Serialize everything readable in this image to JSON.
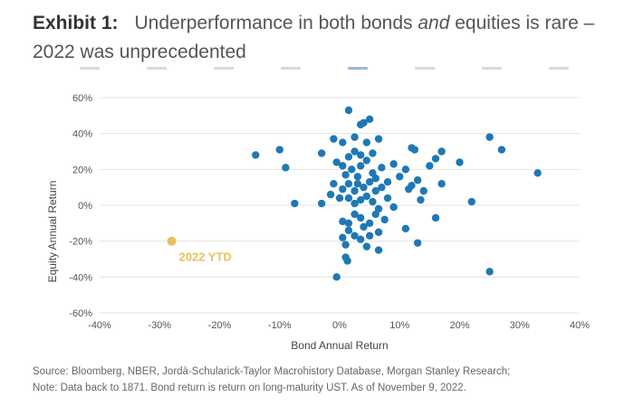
{
  "header": {
    "exhibit_label": "Exhibit 1:",
    "title_part1": "Underperformance in both bonds ",
    "title_emphasis": "and",
    "title_part2": " equities is rare – 2022 was unprecedented"
  },
  "footnote": {
    "line1": "Source: Bloomberg, NBER, Jordà-Schularick-Taylor Macrohistory Database, Morgan Stanley Research;",
    "line2": "Note: Data back to 1871. Bond return is return on long-maturity UST. As of November 9, 2022."
  },
  "colors": {
    "points": "#1f78b4",
    "highlight": "#e8c15c",
    "gridline": "#e3e3e3",
    "axis_text": "#555555"
  },
  "chart_data": {
    "type": "scatter",
    "xlabel": "Bond Annual Return",
    "ylabel": "Equity Annual Return",
    "xlim": [
      -40,
      40
    ],
    "ylim": [
      -60,
      60
    ],
    "x_ticks": [
      -40,
      -30,
      -20,
      -10,
      0,
      10,
      20,
      30,
      40
    ],
    "x_tick_labels": [
      "-40%",
      "-30%",
      "-20%",
      "-10%",
      "0%",
      "10%",
      "20%",
      "30%",
      "40%"
    ],
    "y_ticks": [
      -60,
      -40,
      -20,
      0,
      20,
      40,
      60
    ],
    "y_tick_labels": [
      "-60%",
      "-40%",
      "-20%",
      "0%",
      "20%",
      "40%",
      "60%"
    ],
    "grid": "horizontal",
    "series": [
      {
        "points": [
          [
            1.5,
            53
          ],
          [
            3.5,
            45
          ],
          [
            4,
            46
          ],
          [
            5,
            48
          ],
          [
            -1,
            37
          ],
          [
            0.5,
            35
          ],
          [
            2.5,
            38
          ],
          [
            4.5,
            35
          ],
          [
            6.5,
            37
          ],
          [
            12,
            32
          ],
          [
            12.5,
            31
          ],
          [
            17,
            30
          ],
          [
            25,
            38
          ],
          [
            27,
            31
          ],
          [
            33,
            18
          ],
          [
            -14,
            28
          ],
          [
            -10,
            31
          ],
          [
            -9,
            21
          ],
          [
            -3,
            29
          ],
          [
            -7.5,
            1
          ],
          [
            -3,
            1
          ],
          [
            -1.5,
            6
          ],
          [
            0,
            4
          ],
          [
            -0.5,
            24
          ],
          [
            0.5,
            22
          ],
          [
            1.5,
            27
          ],
          [
            2.5,
            30
          ],
          [
            3.5,
            28
          ],
          [
            5.5,
            29
          ],
          [
            1,
            17
          ],
          [
            2,
            20
          ],
          [
            3,
            16
          ],
          [
            3.5,
            22
          ],
          [
            4.5,
            25
          ],
          [
            5.5,
            18
          ],
          [
            6,
            15
          ],
          [
            7,
            21
          ],
          [
            8,
            13
          ],
          [
            9,
            23
          ],
          [
            11,
            20
          ],
          [
            12,
            11
          ],
          [
            13,
            14
          ],
          [
            14,
            8
          ],
          [
            15,
            22
          ],
          [
            16,
            26
          ],
          [
            17,
            12
          ],
          [
            20,
            24
          ],
          [
            22,
            2
          ],
          [
            -1,
            12
          ],
          [
            0.5,
            9
          ],
          [
            1.5,
            12
          ],
          [
            2.5,
            8
          ],
          [
            3,
            12
          ],
          [
            4,
            10
          ],
          [
            5,
            13
          ],
          [
            6,
            8
          ],
          [
            7,
            10
          ],
          [
            8,
            4
          ],
          [
            10,
            16
          ],
          [
            11.5,
            9
          ],
          [
            13.5,
            3
          ],
          [
            1.5,
            4
          ],
          [
            2.5,
            1
          ],
          [
            3.5,
            3
          ],
          [
            4.5,
            5
          ],
          [
            5.5,
            2
          ],
          [
            6.5,
            -2
          ],
          [
            9,
            -1
          ],
          [
            0.5,
            -9
          ],
          [
            1.5,
            -10
          ],
          [
            2.5,
            -5
          ],
          [
            3.5,
            -7
          ],
          [
            4,
            -12
          ],
          [
            5,
            -10
          ],
          [
            6,
            -5
          ],
          [
            7.5,
            -8
          ],
          [
            1.5,
            -14
          ],
          [
            2.5,
            -17
          ],
          [
            3.5,
            -19
          ],
          [
            5,
            -17
          ],
          [
            6.5,
            -15
          ],
          [
            0.5,
            -18
          ],
          [
            1,
            -22
          ],
          [
            4.5,
            -23
          ],
          [
            6.5,
            -25
          ],
          [
            11,
            -13
          ],
          [
            13,
            -21
          ],
          [
            16,
            -7
          ],
          [
            1,
            -29
          ],
          [
            1.3,
            -31
          ],
          [
            -0.5,
            -40
          ],
          [
            25,
            -37
          ]
        ]
      }
    ],
    "highlight": {
      "label": "2022 YTD",
      "x": -28,
      "y": -20
    }
  }
}
